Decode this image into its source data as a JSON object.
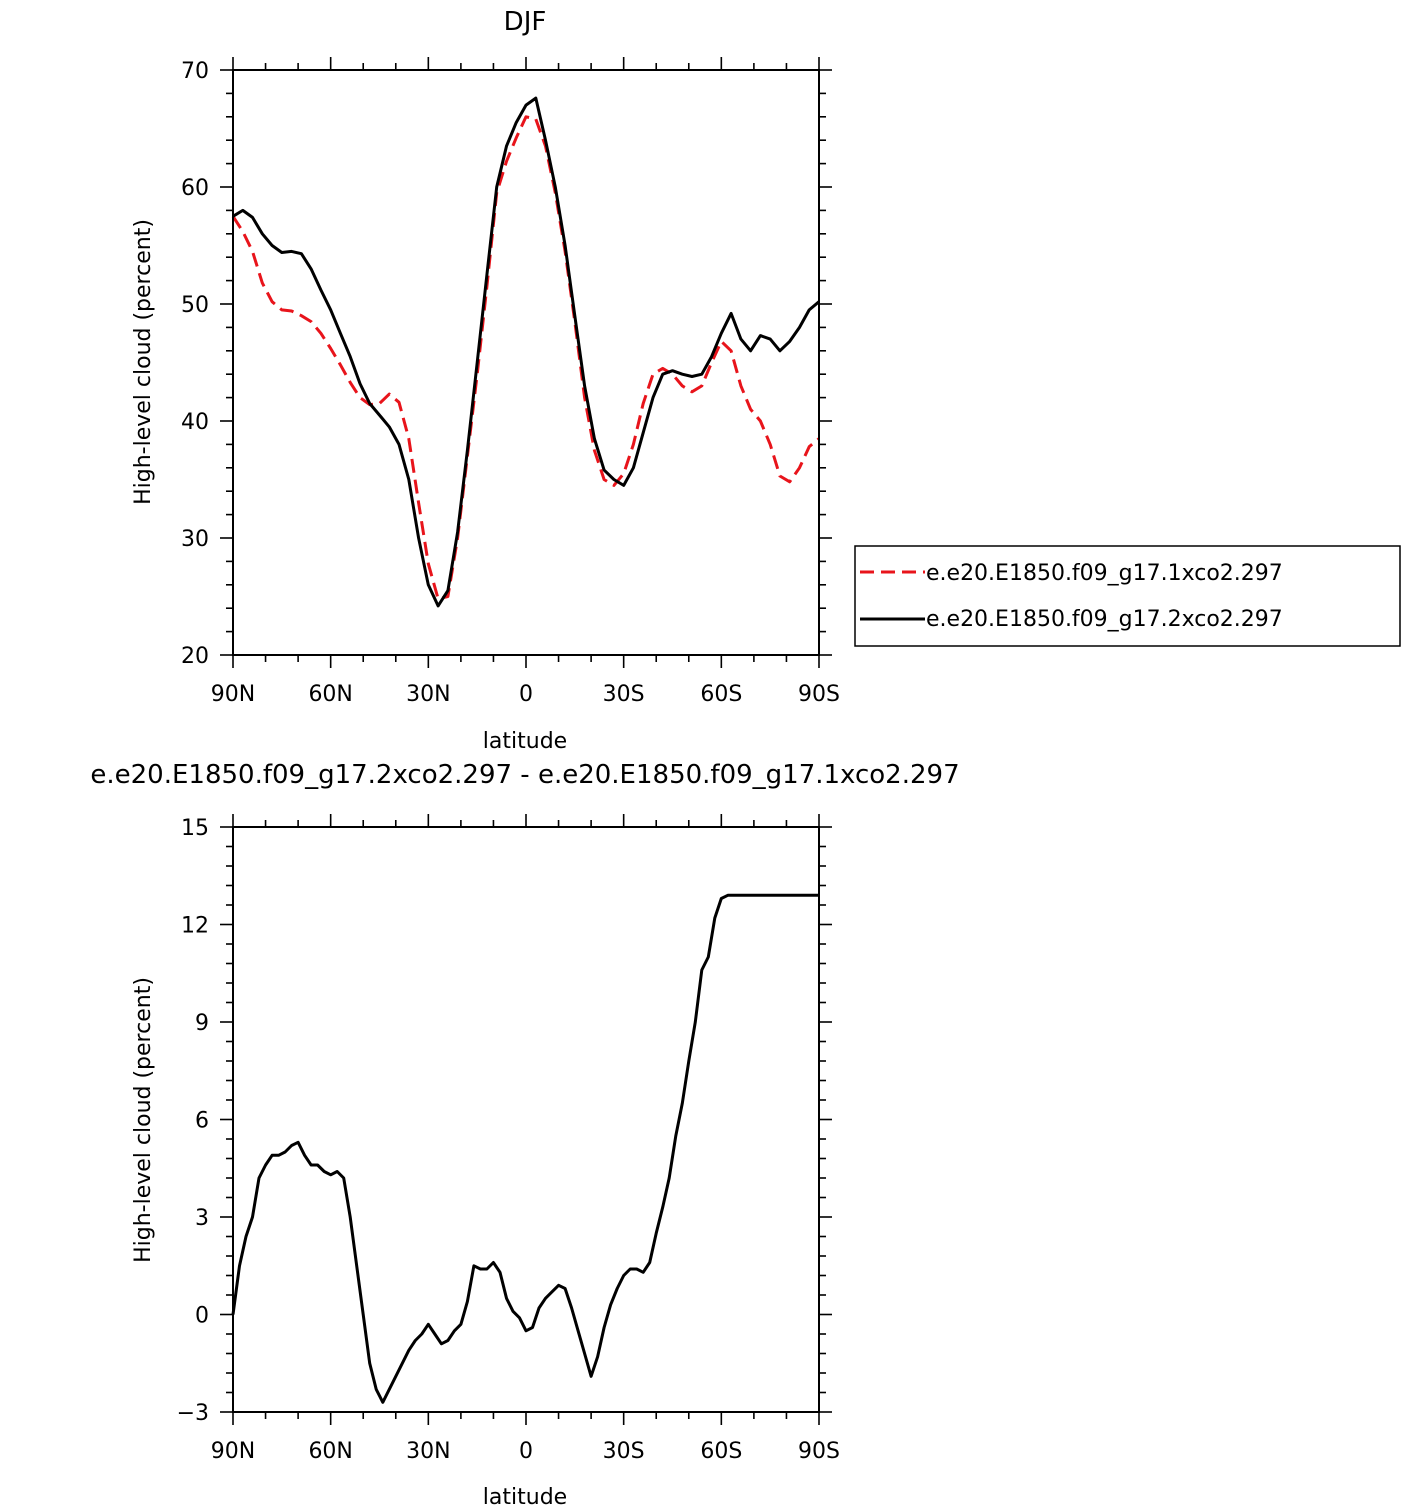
{
  "chart_data": [
    {
      "type": "line",
      "title": "DJF",
      "xlabel": "latitude",
      "ylabel": "High-level cloud (percent)",
      "xlim": [
        -90,
        90
      ],
      "ylim": [
        20,
        70
      ],
      "xticks": [
        {
          "value": -90,
          "label": "90N"
        },
        {
          "value": -60,
          "label": "60N"
        },
        {
          "value": -30,
          "label": "30N"
        },
        {
          "value": 0,
          "label": "0"
        },
        {
          "value": 30,
          "label": "30S"
        },
        {
          "value": 60,
          "label": "60S"
        },
        {
          "value": 90,
          "label": "90S"
        }
      ],
      "yticks": [
        20,
        30,
        40,
        50,
        60,
        70
      ],
      "legend": {
        "placement": "right",
        "entries": [
          {
            "label": "e.e20.E1850.f09_g17.1xco2.297",
            "color": "#e8141b",
            "dash": "dashed"
          },
          {
            "label": "e.e20.E1850.f09_g17.2xco2.297",
            "color": "#000000",
            "dash": "solid"
          }
        ]
      },
      "series": [
        {
          "name": "e.e20.E1850.f09_g17.1xco2.297",
          "color": "#e8141b",
          "dash": "dashed",
          "x": [
            -90,
            -87,
            -84,
            -81,
            -78,
            -75,
            -72,
            -69,
            -66,
            -63,
            -60,
            -57,
            -54,
            -51,
            -48,
            -45,
            -42,
            -39,
            -36,
            -33,
            -30,
            -27,
            -24,
            -21,
            -18,
            -15,
            -12,
            -9,
            -6,
            -3,
            0,
            3,
            6,
            9,
            12,
            15,
            18,
            21,
            24,
            27,
            30,
            33,
            36,
            39,
            42,
            45,
            48,
            51,
            54,
            57,
            60,
            63,
            66,
            69,
            72,
            75,
            78,
            81,
            84,
            87,
            90
          ],
          "y": [
            57.5,
            56.2,
            54.5,
            51.8,
            50.2,
            49.5,
            49.4,
            49.0,
            48.5,
            47.5,
            46.2,
            44.8,
            43.3,
            42.0,
            41.4,
            41.5,
            42.3,
            41.6,
            38.5,
            33.0,
            27.8,
            24.8,
            25.0,
            30.0,
            37.0,
            44.0,
            51.5,
            59.5,
            62.2,
            64.2,
            66.0,
            65.8,
            63.5,
            59.5,
            54.5,
            48.5,
            42.0,
            37.5,
            35.0,
            34.5,
            35.5,
            38.0,
            41.5,
            44.0,
            44.5,
            44.0,
            43.0,
            42.5,
            43.0,
            45.0,
            46.8,
            46.0,
            43.0,
            41.0,
            40.0,
            38.0,
            35.3,
            34.8,
            36.0,
            37.8,
            38.5
          ]
        },
        {
          "name": "e.e20.E1850.f09_g17.2xco2.297",
          "color": "#000000",
          "dash": "solid",
          "x": [
            -90,
            -87,
            -84,
            -81,
            -78,
            -75,
            -72,
            -69,
            -66,
            -63,
            -60,
            -57,
            -54,
            -51,
            -48,
            -45,
            -42,
            -39,
            -36,
            -33,
            -30,
            -27,
            -24,
            -21,
            -18,
            -15,
            -12,
            -9,
            -6,
            -3,
            0,
            3,
            6,
            9,
            12,
            15,
            18,
            21,
            24,
            27,
            30,
            33,
            36,
            39,
            42,
            45,
            48,
            51,
            54,
            57,
            60,
            63,
            66,
            69,
            72,
            75,
            78,
            81,
            84,
            87,
            90
          ],
          "y": [
            57.5,
            58.0,
            57.4,
            56.0,
            55.0,
            54.4,
            54.5,
            54.3,
            53.0,
            51.2,
            49.5,
            47.5,
            45.5,
            43.2,
            41.5,
            40.5,
            39.5,
            38.0,
            35.0,
            30.0,
            26.0,
            24.2,
            25.5,
            30.5,
            37.5,
            45.0,
            52.5,
            60.0,
            63.5,
            65.5,
            67.0,
            67.6,
            64.0,
            60.0,
            55.0,
            49.0,
            43.0,
            38.5,
            35.8,
            35.0,
            34.5,
            36.0,
            39.0,
            42.0,
            44.0,
            44.3,
            44.0,
            43.8,
            44.0,
            45.5,
            47.5,
            49.2,
            47.0,
            46.0,
            47.3,
            47.0,
            46.0,
            46.8,
            48.0,
            49.5,
            50.2
          ]
        }
      ]
    },
    {
      "type": "line",
      "title": "e.e20.E1850.f09_g17.2xco2.297 - e.e20.E1850.f09_g17.1xco2.297",
      "xlabel": "latitude",
      "ylabel": "High-level cloud (percent)",
      "xlim": [
        -90,
        90
      ],
      "ylim": [
        -3,
        15
      ],
      "xticks": [
        {
          "value": -90,
          "label": "90N"
        },
        {
          "value": -60,
          "label": "60N"
        },
        {
          "value": -30,
          "label": "30N"
        },
        {
          "value": 0,
          "label": "0"
        },
        {
          "value": 30,
          "label": "30S"
        },
        {
          "value": 60,
          "label": "60S"
        },
        {
          "value": 90,
          "label": "90S"
        }
      ],
      "yticks": [
        -3,
        0,
        3,
        6,
        9,
        12,
        15
      ],
      "series": [
        {
          "color": "#000000",
          "dash": "solid",
          "x": [
            -90,
            -88,
            -86,
            -84,
            -82,
            -80,
            -78,
            -76,
            -74,
            -72,
            -70,
            -68,
            -66,
            -64,
            -62,
            -60,
            -58,
            -56,
            -54,
            -52,
            -50,
            -48,
            -46,
            -44,
            -42,
            -40,
            -38,
            -36,
            -34,
            -32,
            -30,
            -28,
            -26,
            -24,
            -22,
            -20,
            -18,
            -16,
            -14,
            -12,
            -10,
            -8,
            -6,
            -4,
            -2,
            0,
            2,
            4,
            6,
            8,
            10,
            12,
            14,
            16,
            18,
            20,
            22,
            24,
            26,
            28,
            30,
            32,
            34,
            36,
            38,
            40,
            42,
            44,
            46,
            48,
            50,
            52,
            54,
            56,
            58,
            60,
            62,
            64,
            66,
            68,
            70,
            72,
            74,
            76,
            78,
            80,
            82,
            84,
            86,
            88,
            90
          ],
          "y": [
            0.0,
            1.5,
            2.4,
            3.0,
            4.2,
            4.6,
            4.9,
            4.9,
            5.0,
            5.2,
            5.3,
            4.9,
            4.6,
            4.6,
            4.4,
            4.3,
            4.4,
            4.2,
            3.0,
            1.5,
            0.0,
            -1.5,
            -2.3,
            -2.7,
            -2.3,
            -1.9,
            -1.5,
            -1.1,
            -0.8,
            -0.6,
            -0.3,
            -0.6,
            -0.9,
            -0.8,
            -0.5,
            -0.3,
            0.4,
            1.5,
            1.4,
            1.4,
            1.6,
            1.3,
            0.5,
            0.1,
            -0.1,
            -0.5,
            -0.4,
            0.2,
            0.5,
            0.7,
            0.9,
            0.8,
            0.2,
            -0.5,
            -1.2,
            -1.9,
            -1.3,
            -0.4,
            0.3,
            0.8,
            1.2,
            1.4,
            1.4,
            1.3,
            1.6,
            2.5,
            3.3,
            4.2,
            5.5,
            6.5,
            7.8,
            9.0,
            10.6,
            11.0,
            12.2,
            12.8,
            12.9,
            12.9,
            12.9,
            12.9,
            12.9,
            12.9,
            12.9,
            12.9,
            12.9,
            12.9,
            12.9,
            12.9,
            12.9,
            12.9,
            12.9
          ]
        }
      ]
    }
  ]
}
